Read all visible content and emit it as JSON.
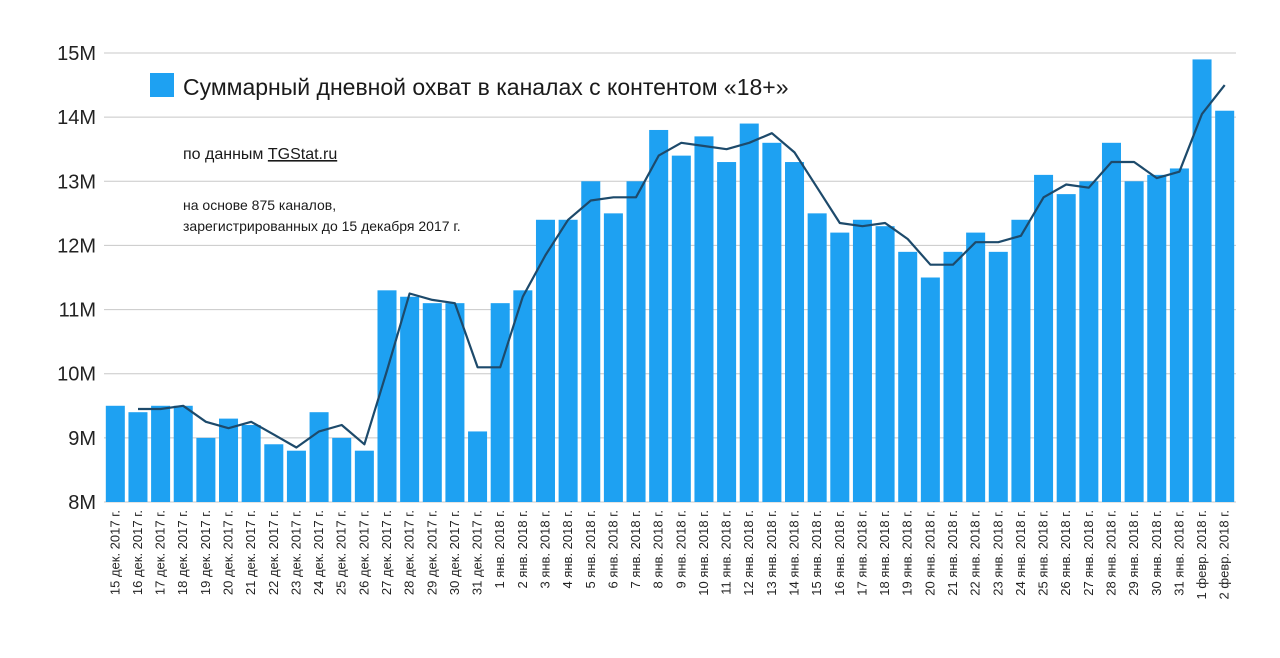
{
  "chart_data": {
    "type": "bar",
    "ylim": [
      8,
      15
    ],
    "yticks": [
      "8M",
      "9M",
      "10M",
      "11M",
      "12M",
      "13M",
      "14M",
      "15M"
    ],
    "colors": {
      "bar": "#1ea1f2",
      "line": "#1d4a6b"
    },
    "legend": {
      "label": "Суммарный дневной охват в каналах с контентом «18+»",
      "position": "top-left"
    },
    "source": {
      "prefix": "по данным ",
      "link": "TGStat.ru"
    },
    "notes": [
      "на основе 875 каналов,",
      "зарегистрированных до 15 декабря 2017 г."
    ],
    "categories": [
      "15 дек. 2017 г.",
      "16 дек. 2017 г.",
      "17 дек. 2017 г.",
      "18 дек. 2017 г.",
      "19 дек. 2017 г.",
      "20 дек. 2017 г.",
      "21 дек. 2017 г.",
      "22 дек. 2017 г.",
      "23 дек. 2017 г.",
      "24 дек. 2017 г.",
      "25 дек. 2017 г.",
      "26 дек. 2017 г.",
      "27 дек. 2017 г.",
      "28 дек. 2017 г.",
      "29 дек. 2017 г.",
      "30 дек. 2017 г.",
      "31 дек. 2017 г.",
      "1 янв. 2018 г.",
      "2 янв. 2018 г.",
      "3 янв. 2018 г.",
      "4 янв. 2018 г.",
      "5 янв. 2018 г.",
      "6 янв. 2018 г.",
      "7 янв. 2018 г.",
      "8 янв. 2018 г.",
      "9 янв. 2018 г.",
      "10 янв. 2018 г.",
      "11 янв. 2018 г.",
      "12 янв. 2018 г.",
      "13 янв. 2018 г.",
      "14 янв. 2018 г.",
      "15 янв. 2018 г.",
      "16 янв. 2018 г.",
      "17 янв. 2018 г.",
      "18 янв. 2018 г.",
      "19 янв. 2018 г.",
      "20 янв. 2018 г.",
      "21 янв. 2018 г.",
      "22 янв. 2018 г.",
      "23 янв. 2018 г.",
      "24 янв. 2018 г.",
      "25 янв. 2018 г.",
      "26 янв. 2018 г.",
      "27 янв. 2018 г.",
      "28 янв. 2018 г.",
      "29 янв. 2018 г.",
      "30 янв. 2018 г.",
      "31 янв. 2018 г.",
      "1 февр. 2018 г.",
      "2 февр. 2018 г."
    ],
    "values": [
      9.5,
      9.4,
      9.5,
      9.5,
      9.0,
      9.3,
      9.2,
      8.9,
      8.8,
      9.4,
      9.0,
      8.8,
      11.3,
      11.2,
      11.1,
      11.1,
      9.1,
      11.1,
      11.3,
      12.4,
      12.4,
      13.0,
      12.5,
      13.0,
      13.8,
      13.4,
      13.7,
      13.3,
      13.9,
      13.6,
      13.3,
      12.5,
      12.2,
      12.4,
      12.3,
      11.9,
      11.5,
      11.9,
      12.2,
      11.9,
      12.4,
      13.1,
      12.8,
      13.0,
      13.6,
      13.0,
      13.1,
      13.2,
      14.9,
      14.1
    ],
    "trend": [
      null,
      9.45,
      9.45,
      9.5,
      9.25,
      9.15,
      9.25,
      9.05,
      8.85,
      9.1,
      9.2,
      8.9,
      10.05,
      11.25,
      11.15,
      11.1,
      10.1,
      10.1,
      11.2,
      11.85,
      12.4,
      12.7,
      12.75,
      12.75,
      13.4,
      13.6,
      13.55,
      13.5,
      13.6,
      13.75,
      13.45,
      12.9,
      12.35,
      12.3,
      12.35,
      12.1,
      11.7,
      11.7,
      12.05,
      12.05,
      12.15,
      12.75,
      12.95,
      12.9,
      13.3,
      13.3,
      13.05,
      13.15,
      14.05,
      14.5
    ]
  }
}
